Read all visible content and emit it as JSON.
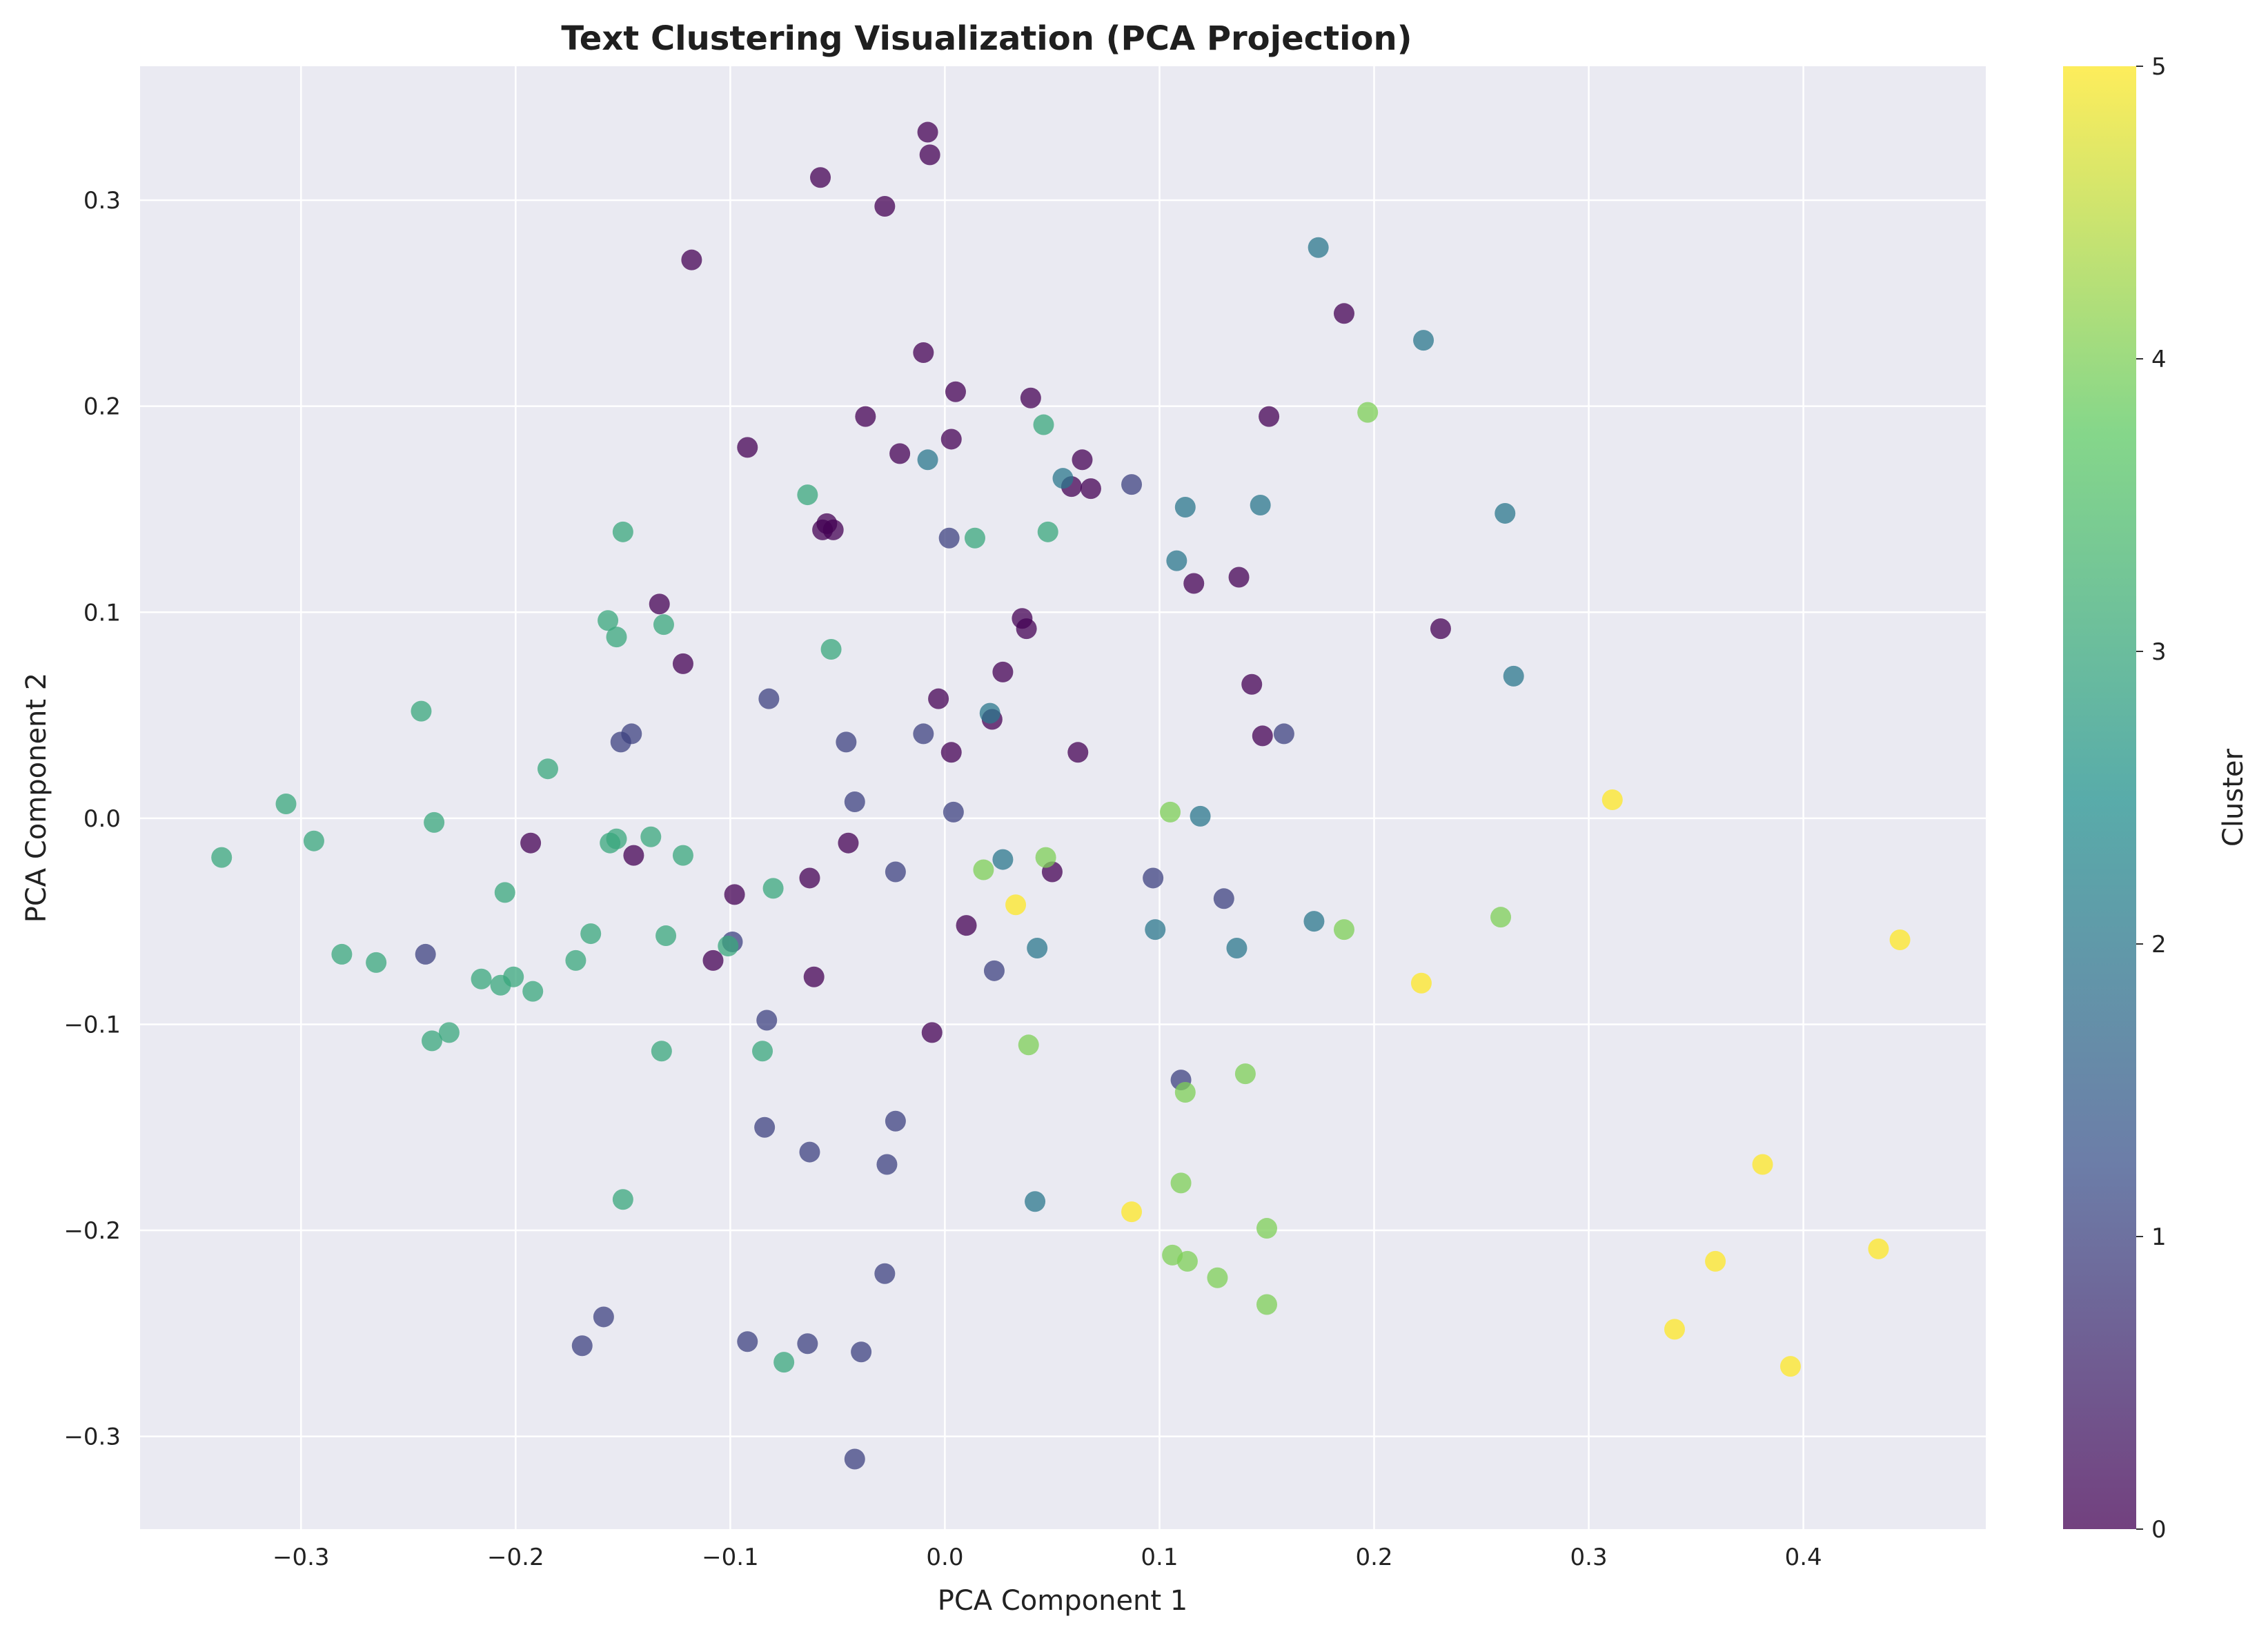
{
  "chart_data": {
    "type": "scatter",
    "title": "Text Clustering Visualization (PCA Projection)",
    "xlabel": "PCA Component 1",
    "ylabel": "PCA Component 2",
    "xlim": [
      -0.375,
      0.485
    ],
    "ylim": [
      -0.345,
      0.365
    ],
    "xticks": [
      -0.3,
      -0.2,
      -0.1,
      0.0,
      0.1,
      0.2,
      0.3,
      0.4
    ],
    "yticks": [
      -0.3,
      -0.2,
      -0.1,
      0.0,
      0.1,
      0.2,
      0.3
    ],
    "grid": true,
    "colorbar": {
      "label": "Cluster",
      "min": 0,
      "max": 5,
      "ticks": [
        0,
        1,
        2,
        3,
        4,
        5
      ],
      "colormap": "viridis"
    },
    "colors": {
      "plot_background": "#eaeaf2",
      "grid": "#ffffff",
      "viridis": [
        "#440154",
        "#3b528b",
        "#21908d",
        "#5dc963",
        "#fde725"
      ]
    },
    "series": [
      {
        "cluster": 0,
        "points": [
          [
            -0.008,
            0.333
          ],
          [
            -0.007,
            0.322
          ],
          [
            -0.058,
            0.311
          ],
          [
            -0.028,
            0.297
          ],
          [
            -0.118,
            0.271
          ],
          [
            -0.01,
            0.226
          ],
          [
            0.005,
            0.207
          ],
          [
            0.04,
            0.204
          ],
          [
            -0.037,
            0.195
          ],
          [
            0.003,
            0.184
          ],
          [
            -0.092,
            0.18
          ],
          [
            -0.021,
            0.177
          ],
          [
            0.064,
            0.174
          ],
          [
            0.059,
            0.161
          ],
          [
            0.068,
            0.16
          ],
          [
            -0.057,
            0.14
          ],
          [
            -0.055,
            0.143
          ],
          [
            -0.052,
            0.14
          ],
          [
            0.186,
            0.245
          ],
          [
            0.151,
            0.195
          ],
          [
            0.116,
            0.114
          ],
          [
            0.137,
            0.117
          ],
          [
            0.231,
            0.092
          ],
          [
            0.036,
            0.097
          ],
          [
            0.038,
            0.092
          ],
          [
            0.027,
            0.071
          ],
          [
            0.143,
            0.065
          ],
          [
            -0.133,
            0.104
          ],
          [
            -0.122,
            0.075
          ],
          [
            -0.003,
            0.058
          ],
          [
            0.022,
            0.048
          ],
          [
            0.148,
            0.04
          ],
          [
            0.003,
            0.032
          ],
          [
            0.062,
            0.032
          ],
          [
            -0.193,
            -0.012
          ],
          [
            -0.145,
            -0.018
          ],
          [
            -0.045,
            -0.012
          ],
          [
            -0.098,
            -0.037
          ],
          [
            -0.063,
            -0.029
          ],
          [
            0.05,
            -0.026
          ],
          [
            -0.108,
            -0.069
          ],
          [
            0.01,
            -0.052
          ],
          [
            -0.061,
            -0.077
          ],
          [
            -0.006,
            -0.104
          ]
        ]
      },
      {
        "cluster": 1,
        "points": [
          [
            0.002,
            0.136
          ],
          [
            0.087,
            0.162
          ],
          [
            -0.082,
            0.058
          ],
          [
            -0.146,
            0.041
          ],
          [
            -0.151,
            0.037
          ],
          [
            -0.046,
            0.037
          ],
          [
            -0.01,
            0.041
          ],
          [
            0.158,
            0.041
          ],
          [
            -0.042,
            0.008
          ],
          [
            0.004,
            0.003
          ],
          [
            -0.023,
            -0.026
          ],
          [
            0.097,
            -0.029
          ],
          [
            0.13,
            -0.039
          ],
          [
            -0.242,
            -0.066
          ],
          [
            -0.099,
            -0.06
          ],
          [
            0.023,
            -0.074
          ],
          [
            -0.083,
            -0.098
          ],
          [
            0.11,
            -0.127
          ],
          [
            -0.023,
            -0.147
          ],
          [
            -0.084,
            -0.15
          ],
          [
            -0.063,
            -0.162
          ],
          [
            -0.027,
            -0.168
          ],
          [
            -0.028,
            -0.221
          ],
          [
            -0.159,
            -0.242
          ],
          [
            -0.169,
            -0.256
          ],
          [
            -0.092,
            -0.254
          ],
          [
            -0.064,
            -0.255
          ],
          [
            -0.039,
            -0.259
          ],
          [
            -0.042,
            -0.311
          ]
        ]
      },
      {
        "cluster": 2,
        "points": [
          [
            0.174,
            0.277
          ],
          [
            0.223,
            0.232
          ],
          [
            0.055,
            0.165
          ],
          [
            -0.008,
            0.174
          ],
          [
            0.112,
            0.151
          ],
          [
            0.147,
            0.152
          ],
          [
            0.261,
            0.148
          ],
          [
            0.108,
            0.125
          ],
          [
            0.265,
            0.069
          ],
          [
            0.021,
            0.051
          ],
          [
            0.119,
            0.001
          ],
          [
            0.027,
            -0.02
          ],
          [
            0.098,
            -0.054
          ],
          [
            0.172,
            -0.05
          ],
          [
            0.043,
            -0.063
          ],
          [
            0.136,
            -0.063
          ],
          [
            0.042,
            -0.186
          ]
        ]
      },
      {
        "cluster": 3,
        "points": [
          [
            0.046,
            0.191
          ],
          [
            -0.064,
            0.157
          ],
          [
            0.014,
            0.136
          ],
          [
            0.048,
            0.139
          ],
          [
            -0.15,
            0.139
          ],
          [
            -0.157,
            0.096
          ],
          [
            -0.131,
            0.094
          ],
          [
            -0.153,
            0.088
          ],
          [
            -0.053,
            0.082
          ],
          [
            -0.244,
            0.052
          ],
          [
            -0.185,
            0.024
          ],
          [
            -0.307,
            0.007
          ],
          [
            -0.238,
            -0.002
          ],
          [
            -0.294,
            -0.011
          ],
          [
            -0.153,
            -0.01
          ],
          [
            -0.156,
            -0.012
          ],
          [
            -0.137,
            -0.009
          ],
          [
            -0.337,
            -0.019
          ],
          [
            -0.122,
            -0.018
          ],
          [
            -0.08,
            -0.034
          ],
          [
            -0.205,
            -0.036
          ],
          [
            -0.165,
            -0.056
          ],
          [
            -0.13,
            -0.057
          ],
          [
            -0.101,
            -0.062
          ],
          [
            -0.281,
            -0.066
          ],
          [
            -0.265,
            -0.07
          ],
          [
            -0.172,
            -0.069
          ],
          [
            -0.216,
            -0.078
          ],
          [
            -0.201,
            -0.077
          ],
          [
            -0.207,
            -0.081
          ],
          [
            -0.192,
            -0.084
          ],
          [
            -0.231,
            -0.104
          ],
          [
            -0.239,
            -0.108
          ],
          [
            -0.132,
            -0.113
          ],
          [
            -0.085,
            -0.113
          ],
          [
            -0.15,
            -0.185
          ],
          [
            -0.075,
            -0.264
          ]
        ]
      },
      {
        "cluster": 4,
        "points": [
          [
            0.197,
            0.197
          ],
          [
            0.105,
            0.003
          ],
          [
            0.047,
            -0.019
          ],
          [
            0.018,
            -0.025
          ],
          [
            0.186,
            -0.054
          ],
          [
            0.259,
            -0.048
          ],
          [
            0.039,
            -0.11
          ],
          [
            0.14,
            -0.124
          ],
          [
            0.112,
            -0.133
          ],
          [
            0.11,
            -0.177
          ],
          [
            0.15,
            -0.199
          ],
          [
            0.106,
            -0.212
          ],
          [
            0.113,
            -0.215
          ],
          [
            0.127,
            -0.223
          ],
          [
            0.15,
            -0.236
          ]
        ]
      },
      {
        "cluster": 5,
        "points": [
          [
            0.311,
            0.009
          ],
          [
            0.033,
            -0.042
          ],
          [
            0.445,
            -0.059
          ],
          [
            0.222,
            -0.08
          ],
          [
            0.087,
            -0.191
          ],
          [
            0.381,
            -0.168
          ],
          [
            0.359,
            -0.215
          ],
          [
            0.435,
            -0.209
          ],
          [
            0.34,
            -0.248
          ],
          [
            0.394,
            -0.266
          ]
        ]
      }
    ]
  }
}
